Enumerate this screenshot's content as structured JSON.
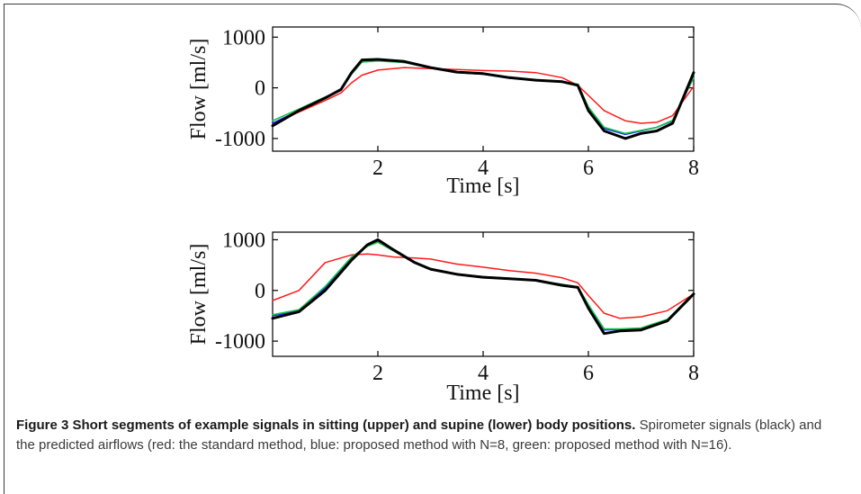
{
  "figure": {
    "caption_title": "Figure 3 Short segments of example signals in sitting (upper) and supine (lower) body positions.",
    "caption_body": "Spirometer signals (black) and the predicted airflows (red: the standard method, blue: proposed method with N=8, green: proposed method with N=16)."
  },
  "colors": {
    "spirometer": "#000000",
    "standard": "#ff1a1a",
    "n8": "#1a1aff",
    "n16": "#16c24a"
  },
  "chart_data": [
    {
      "type": "line",
      "panel": "upper (sitting)",
      "xlabel": "Time [s]",
      "ylabel": "Flow [ml/s]",
      "xlim": [
        0,
        8
      ],
      "ylim": [
        -1250,
        1200
      ],
      "xticks": [
        2,
        4,
        6,
        8
      ],
      "yticks": [
        -1000,
        0,
        1000
      ],
      "x": [
        0,
        0.5,
        1.0,
        1.3,
        1.5,
        1.7,
        2.0,
        2.5,
        3.0,
        3.5,
        4.0,
        4.5,
        5.0,
        5.5,
        5.8,
        6.0,
        6.3,
        6.7,
        7.0,
        7.3,
        7.6,
        8.0
      ],
      "series": [
        {
          "key": "spirometer",
          "values": [
            -750,
            -450,
            -200,
            -30,
            300,
            550,
            560,
            520,
            400,
            310,
            280,
            200,
            150,
            120,
            50,
            -450,
            -850,
            -1000,
            -900,
            -850,
            -700,
            300
          ]
        },
        {
          "key": "standard",
          "values": [
            -700,
            -480,
            -250,
            -100,
            100,
            250,
            350,
            400,
            380,
            360,
            340,
            330,
            300,
            200,
            50,
            -150,
            -450,
            -650,
            -700,
            -680,
            -550,
            30
          ]
        },
        {
          "key": "n8",
          "values": [
            -700,
            -450,
            -200,
            -50,
            280,
            520,
            550,
            500,
            390,
            300,
            270,
            190,
            150,
            130,
            60,
            -400,
            -800,
            -920,
            -850,
            -780,
            -650,
            200
          ]
        },
        {
          "key": "n16",
          "values": [
            -650,
            -420,
            -180,
            -40,
            270,
            510,
            530,
            500,
            390,
            310,
            270,
            200,
            160,
            120,
            70,
            -380,
            -780,
            -900,
            -840,
            -780,
            -640,
            200
          ]
        }
      ]
    },
    {
      "type": "line",
      "panel": "lower (supine)",
      "xlabel": "Time [s]",
      "ylabel": "Flow [ml/s]",
      "xlim": [
        0,
        8
      ],
      "ylim": [
        -1300,
        1150
      ],
      "xticks": [
        2,
        4,
        6,
        8
      ],
      "yticks": [
        -1000,
        0,
        1000
      ],
      "x": [
        0,
        0.5,
        1.0,
        1.5,
        1.8,
        2.0,
        2.3,
        2.7,
        3.0,
        3.5,
        4.0,
        4.5,
        5.0,
        5.5,
        5.8,
        6.0,
        6.3,
        6.6,
        7.0,
        7.5,
        8.0
      ],
      "series": [
        {
          "key": "spirometer",
          "values": [
            -550,
            -420,
            0,
            600,
            900,
            1000,
            800,
            550,
            420,
            320,
            260,
            230,
            200,
            100,
            60,
            -350,
            -850,
            -800,
            -780,
            -600,
            -70
          ]
        },
        {
          "key": "standard",
          "values": [
            -200,
            0,
            550,
            700,
            720,
            700,
            660,
            640,
            620,
            520,
            460,
            390,
            340,
            250,
            150,
            -100,
            -450,
            -550,
            -520,
            -400,
            -70
          ]
        },
        {
          "key": "n8",
          "values": [
            -500,
            -400,
            50,
            650,
            880,
            980,
            800,
            550,
            420,
            320,
            270,
            240,
            200,
            120,
            60,
            -300,
            -780,
            -770,
            -750,
            -580,
            -60
          ]
        },
        {
          "key": "n16",
          "values": [
            -480,
            -380,
            80,
            660,
            870,
            950,
            780,
            540,
            410,
            320,
            270,
            240,
            200,
            120,
            70,
            -280,
            -760,
            -760,
            -740,
            -570,
            -60
          ]
        }
      ]
    }
  ]
}
